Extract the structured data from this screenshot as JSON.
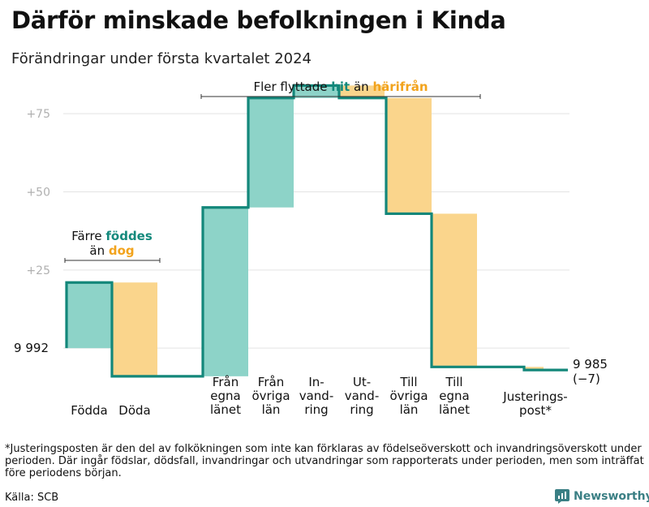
{
  "title": "Därför minskade befolkningen i Kinda",
  "subtitle": "Förändringar under första kvartalet 2024",
  "colors": {
    "increase": "#8dd3c8",
    "decrease": "#fad58c",
    "line": "#13877a",
    "teal_text": "#14897c",
    "orange_text": "#f2a31c",
    "grid": "#e3e3e3",
    "tick": "#b0b0b0",
    "brand": "#3a7f84"
  },
  "chart_data": {
    "type": "waterfall",
    "baseline": 9992,
    "ylim": [
      -8,
      88
    ],
    "yticks": [
      {
        "value": 0,
        "label": "9 992"
      },
      {
        "value": 25,
        "label": "+25"
      },
      {
        "value": 50,
        "label": "+50"
      },
      {
        "value": 75,
        "label": "+75"
      }
    ],
    "steps": [
      {
        "label": [
          "Födda"
        ],
        "change": 21,
        "kind": "increase"
      },
      {
        "label": [
          "Döda"
        ],
        "change": -30,
        "kind": "decrease"
      },
      {
        "label": [
          "Från",
          "egna",
          "länet"
        ],
        "change": 54,
        "kind": "increase"
      },
      {
        "label": [
          "Från",
          "övriga",
          "län"
        ],
        "change": 35,
        "kind": "increase"
      },
      {
        "label": [
          "In-",
          "vand-",
          "ring"
        ],
        "change": 4,
        "kind": "increase"
      },
      {
        "label": [
          "Ut-",
          "vand-",
          "ring"
        ],
        "change": -4,
        "kind": "decrease"
      },
      {
        "label": [
          "Till",
          "övriga",
          "län"
        ],
        "change": -37,
        "kind": "decrease"
      },
      {
        "label": [
          "Till",
          "egna",
          "länet"
        ],
        "change": -49,
        "kind": "decrease"
      },
      {
        "label": [
          "Justerings-",
          "post*"
        ],
        "change": -1,
        "kind": "decrease"
      }
    ],
    "end_value": "9 985",
    "end_change": "(−7)",
    "annotations": [
      {
        "line1": "Färre",
        "highlight1": "föddes",
        "line2": "än",
        "highlight2": "dog"
      },
      {
        "line1": "Fler flyttade",
        "highlight1": "hit",
        "line2": "än",
        "highlight2": "härifrån"
      }
    ]
  },
  "footnote": "*Justeringsposten är den del av folkökningen som inte kan förklaras av födelseöverskott och invandringsöverskott under perioden. Där ingår födslar, dödsfall, invandringar och utvandringar som rapporterats under perioden, men som inträffat före periodens början.",
  "source": "Källa: SCB",
  "brand": "Newsworthy"
}
